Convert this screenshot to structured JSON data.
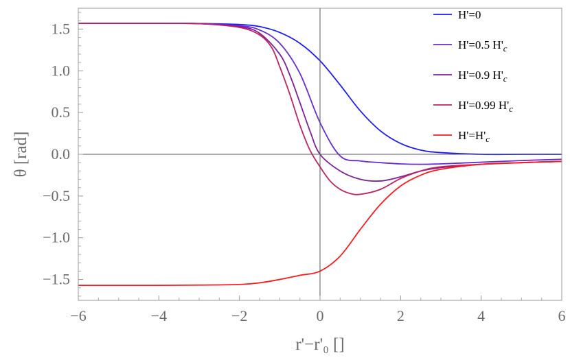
{
  "chart_data": {
    "type": "line",
    "title": "",
    "xlabel": "r'−r'₀ []",
    "ylabel": "θ [rad]",
    "xlim": [
      -6,
      6
    ],
    "ylim": [
      -1.75,
      1.75
    ],
    "xticks": [
      {
        "value": -6,
        "label": "−6"
      },
      {
        "value": -4,
        "label": "−4"
      },
      {
        "value": -2,
        "label": "−2"
      },
      {
        "value": 0,
        "label": "0"
      },
      {
        "value": 2,
        "label": "2"
      },
      {
        "value": 4,
        "label": "4"
      },
      {
        "value": 6,
        "label": "6"
      }
    ],
    "yticks": [
      {
        "value": 1.5,
        "label": "1.5"
      },
      {
        "value": 1.0,
        "label": "1.0"
      },
      {
        "value": 0.5,
        "label": "0.5"
      },
      {
        "value": 0.0,
        "label": "0.0"
      },
      {
        "value": -0.5,
        "label": "−0.5"
      },
      {
        "value": -1.0,
        "label": "−1.0"
      },
      {
        "value": -1.5,
        "label": "−1.5"
      }
    ],
    "grid": false,
    "legend_position": "top-right",
    "series": [
      {
        "name": "H'=0",
        "legend_main": "H'=0",
        "legend_sub": "",
        "color": "#1a1aff",
        "x": [
          -6,
          -4,
          -3,
          -2,
          -1.5,
          -1,
          -0.5,
          0,
          0.5,
          1,
          1.5,
          2,
          2.5,
          3,
          4,
          5,
          6
        ],
        "y": [
          1.57,
          1.57,
          1.567,
          1.555,
          1.53,
          1.46,
          1.33,
          1.12,
          0.83,
          0.52,
          0.28,
          0.13,
          0.05,
          0.02,
          0.0,
          0.0,
          0.0
        ]
      },
      {
        "name": "H'=0.5 H'c",
        "legend_main": "H'=0.5 H'",
        "legend_sub": "c",
        "color": "#6a2ad6",
        "x": [
          -6,
          -4,
          -3,
          -2,
          -1.5,
          -1,
          -0.5,
          0,
          0.5,
          1,
          1.5,
          2,
          2.5,
          3,
          4,
          5,
          6
        ],
        "y": [
          1.57,
          1.57,
          1.565,
          1.54,
          1.49,
          1.33,
          0.97,
          0.38,
          -0.02,
          -0.08,
          -0.1,
          -0.115,
          -0.12,
          -0.115,
          -0.095,
          -0.075,
          -0.06
        ]
      },
      {
        "name": "H'=0.9 H'c",
        "legend_main": "H'=0.9 H'",
        "legend_sub": "c",
        "color": "#7e1e9c",
        "x": [
          -6,
          -4,
          -3,
          -2,
          -1.5,
          -1,
          -0.75,
          -0.5,
          -0.25,
          0,
          0.5,
          1,
          1.5,
          2,
          2.5,
          3,
          4,
          5,
          6
        ],
        "y": [
          1.57,
          1.57,
          1.565,
          1.53,
          1.45,
          1.2,
          0.95,
          0.62,
          0.28,
          0.0,
          -0.2,
          -0.3,
          -0.32,
          -0.27,
          -0.2,
          -0.16,
          -0.12,
          -0.1,
          -0.085
        ]
      },
      {
        "name": "H'=0.99 H'c",
        "legend_main": "H'=0.99 H'",
        "legend_sub": "c",
        "color": "#c0205f",
        "x": [
          -6,
          -4,
          -3,
          -2,
          -1.5,
          -1.2,
          -1,
          -0.75,
          -0.5,
          -0.25,
          0,
          0.25,
          0.5,
          0.75,
          1,
          1.5,
          2,
          2.5,
          3,
          4,
          5,
          6
        ],
        "y": [
          1.57,
          1.57,
          1.565,
          1.52,
          1.43,
          1.28,
          1.05,
          0.72,
          0.35,
          0.05,
          -0.15,
          -0.32,
          -0.42,
          -0.47,
          -0.48,
          -0.42,
          -0.29,
          -0.2,
          -0.15,
          -0.12,
          -0.1,
          -0.085
        ]
      },
      {
        "name": "H'=H'c",
        "legend_main": "H'=H'",
        "legend_sub": "c",
        "color": "#ff1a1a",
        "x": [
          -6,
          -4,
          -3,
          -2,
          -1.5,
          -1,
          -0.5,
          0,
          0.5,
          1,
          1.5,
          2,
          2.5,
          3,
          4,
          5,
          6
        ],
        "y": [
          -1.57,
          -1.57,
          -1.567,
          -1.56,
          -1.54,
          -1.5,
          -1.45,
          -1.4,
          -1.22,
          -0.9,
          -0.6,
          -0.38,
          -0.25,
          -0.18,
          -0.12,
          -0.1,
          -0.085
        ]
      }
    ]
  }
}
